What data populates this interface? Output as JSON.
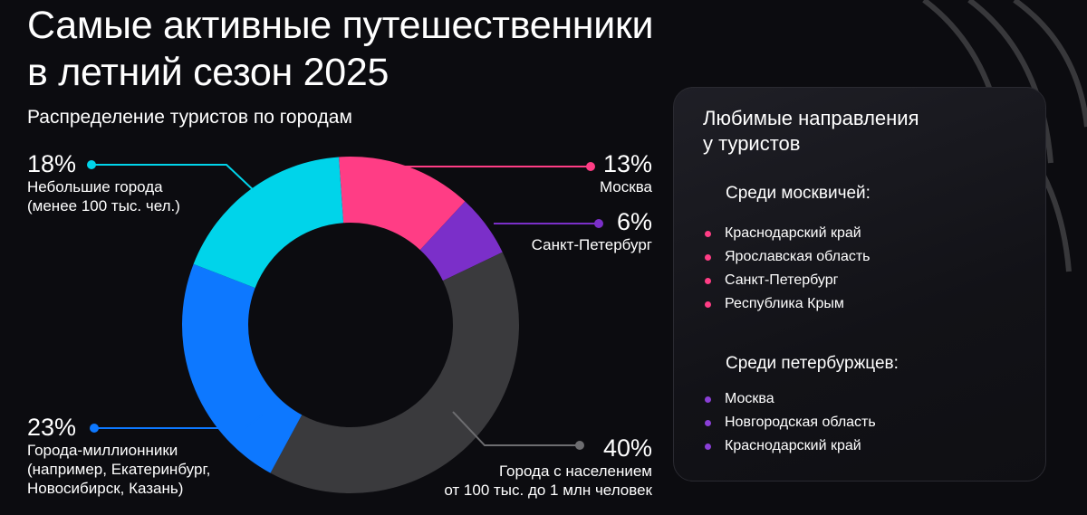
{
  "title_line1": "Самые активные путешественники",
  "title_line2": "в летний сезон 2025",
  "subtitle": "Распределение туристов по городам",
  "chart_data": {
    "type": "pie",
    "donut": true,
    "title": "Распределение туристов по городам",
    "unit": "%",
    "slices": [
      {
        "label": "Москва",
        "value": 13,
        "pct_label": "13%",
        "desc": [
          "Москва"
        ],
        "color": "#ff3d85"
      },
      {
        "label": "Санкт-Петербург",
        "value": 6,
        "pct_label": "6%",
        "desc": [
          "Санкт-Петербург"
        ],
        "color": "#7b2fc9"
      },
      {
        "label": "Города с населением от 100 тыс. до 1 млн человек",
        "value": 40,
        "pct_label": "40%",
        "desc": [
          "Города с населением",
          "от 100 тыс. до 1 млн человек"
        ],
        "color": "#3a3a3d"
      },
      {
        "label": "Города-миллионники (например, Екатеринбург, Новосибирск, Казань)",
        "value": 23,
        "pct_label": "23%",
        "desc": [
          "Города-миллионники",
          "(например, Екатеринбург,",
          "Новосибирск, Казань)"
        ],
        "color": "#0d78ff"
      },
      {
        "label": "Небольшие города (менее 100 тыс. чел.)",
        "value": 18,
        "pct_label": "18%",
        "desc": [
          "Небольшие города",
          "(менее 100 тыс. чел.)"
        ],
        "color": "#00d4ea"
      }
    ]
  },
  "panel": {
    "title_line1": "Любимые направления",
    "title_line2": "у туристов",
    "groups": [
      {
        "title": "Среди москвичей:",
        "dot_color": "#ff3d85",
        "items": [
          "Краснодарский край",
          "Ярославская область",
          "Санкт-Петербург",
          "Республика Крым"
        ]
      },
      {
        "title": "Среди петербуржцев:",
        "dot_color": "#8a3fd6",
        "items": [
          "Москва",
          "Новгородская область",
          "Краснодарский край"
        ]
      }
    ]
  }
}
